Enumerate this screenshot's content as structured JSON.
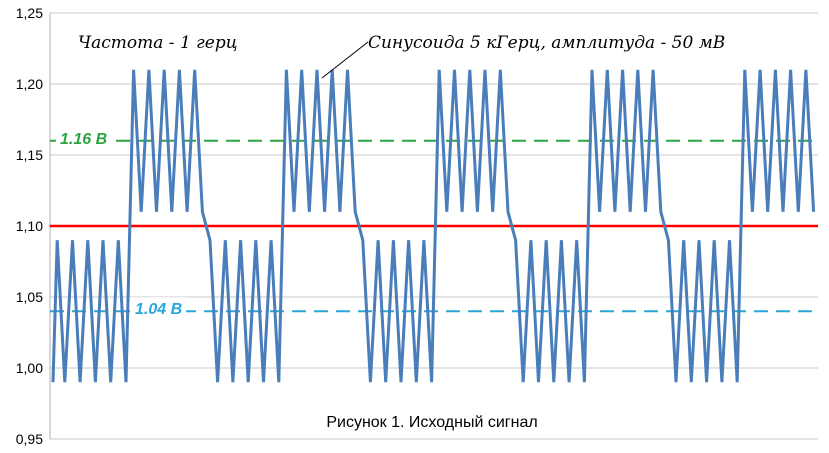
{
  "chart_data": {
    "type": "line",
    "title": "",
    "caption": "Рисунок 1. Исходный сигнал",
    "xlabel": "",
    "ylabel": "",
    "ylim": [
      0.95,
      1.25
    ],
    "yticks": [
      "0,95",
      "1,00",
      "1,05",
      "1,10",
      "1,15",
      "1,20",
      "1,25"
    ],
    "ytick_values": [
      0.95,
      1.0,
      1.05,
      1.1,
      1.15,
      1.2,
      1.25
    ],
    "grid": "horizontal",
    "annotations": {
      "frequency": "Частота - 1 герц",
      "sine": "Синусоида 5 кГерц, амплитуда - 50 мВ"
    },
    "reference_lines": [
      {
        "label": "",
        "value": 1.1,
        "color": "#ff0000",
        "style": "solid"
      },
      {
        "label": "1.16 В",
        "value": 1.16,
        "color": "#2ca444",
        "style": "dashed"
      },
      {
        "label": "1.04 В",
        "value": 1.04,
        "color": "#28a8d8",
        "style": "dashed"
      }
    ],
    "series": [
      {
        "color": "#4a7ebb",
        "low_level": {
          "min": 0.99,
          "max": 1.09
        },
        "high_level": {
          "min": 1.11,
          "max": 1.21
        },
        "segments": [
          {
            "level": "low",
            "peaks": 5
          },
          {
            "level": "high",
            "peaks": 5
          },
          {
            "level": "low",
            "peaks": 5
          },
          {
            "level": "high",
            "peaks": 5
          },
          {
            "level": "low",
            "peaks": 5
          },
          {
            "level": "high",
            "peaks": 5
          },
          {
            "level": "low",
            "peaks": 5
          },
          {
            "level": "high",
            "peaks": 5
          },
          {
            "level": "low",
            "peaks": 5
          },
          {
            "level": "high",
            "peaks": 5
          }
        ]
      }
    ]
  }
}
